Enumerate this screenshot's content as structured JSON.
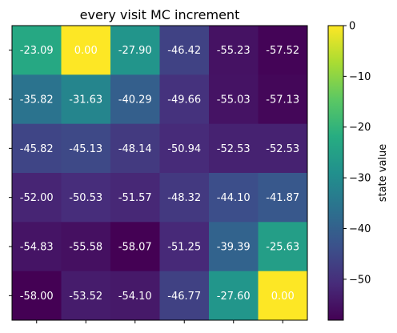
{
  "chart_data": {
    "type": "heatmap",
    "title": "every visit MC increment",
    "colorbar": {
      "label": "state value",
      "range": [
        -58.07,
        0
      ],
      "ticks": [
        0,
        -10,
        -20,
        -30,
        -40,
        -50
      ],
      "tick_labels": [
        "0",
        "−10",
        "−20",
        "−30",
        "−40",
        "−50"
      ],
      "colormap": "viridis"
    },
    "rows": 6,
    "cols": 6,
    "values": [
      [
        -23.09,
        0.0,
        -27.9,
        -46.42,
        -55.23,
        -57.52
      ],
      [
        -35.82,
        -31.63,
        -40.29,
        -49.66,
        -55.03,
        -57.13
      ],
      [
        -45.82,
        -45.13,
        -48.14,
        -50.94,
        -52.53,
        -52.53
      ],
      [
        -52.0,
        -50.53,
        -51.57,
        -48.32,
        -44.1,
        -41.87
      ],
      [
        -54.83,
        -55.58,
        -58.07,
        -51.25,
        -39.39,
        -25.63
      ],
      [
        -58.0,
        -53.52,
        -54.1,
        -46.77,
        -27.6,
        0.0
      ]
    ],
    "labels": [
      [
        "-23.09",
        "0.00",
        "-27.90",
        "-46.42",
        "-55.23",
        "-57.52"
      ],
      [
        "-35.82",
        "-31.63",
        "-40.29",
        "-49.66",
        "-55.03",
        "-57.13"
      ],
      [
        "-45.82",
        "-45.13",
        "-48.14",
        "-50.94",
        "-52.53",
        "-52.53"
      ],
      [
        "-52.00",
        "-50.53",
        "-51.57",
        "-48.32",
        "-44.10",
        "-41.87"
      ],
      [
        "-54.83",
        "-55.58",
        "-58.07",
        "-51.25",
        "-39.39",
        "-25.63"
      ],
      [
        "-58.00",
        "-53.52",
        "-54.10",
        "-46.77",
        "-27.60",
        "0.00"
      ]
    ],
    "xtick_labels": [
      "",
      "",
      "",
      "",
      "",
      ""
    ],
    "ytick_labels": [
      "",
      "",
      "",
      "",
      "",
      ""
    ],
    "label_color": "#ffffff"
  }
}
